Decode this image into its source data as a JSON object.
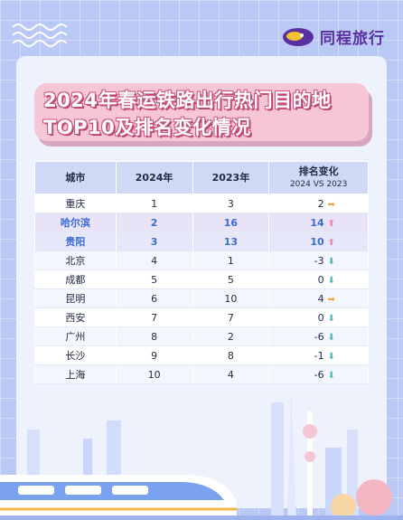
{
  "brand": {
    "name": "同程旅行"
  },
  "title": "2024年春运铁路出行热门目的地TOP10及排名变化情况",
  "table": {
    "headers": {
      "city": "城市",
      "y2024": "2024年",
      "y2023": "2023年",
      "change": "排名变化",
      "change_sub": "2024 VS 2023"
    },
    "rows": [
      {
        "city": "重庆",
        "y2024": "1",
        "y2023": "3",
        "change": "2",
        "dir": "right"
      },
      {
        "city": "哈尔滨",
        "y2024": "2",
        "y2023": "16",
        "change": "14",
        "dir": "up"
      },
      {
        "city": "贵阳",
        "y2024": "3",
        "y2023": "13",
        "change": "10",
        "dir": "up"
      },
      {
        "city": "北京",
        "y2024": "4",
        "y2023": "1",
        "change": "-3",
        "dir": "down"
      },
      {
        "city": "成都",
        "y2024": "5",
        "y2023": "5",
        "change": "0",
        "dir": "down"
      },
      {
        "city": "昆明",
        "y2024": "6",
        "y2023": "10",
        "change": "4",
        "dir": "right"
      },
      {
        "city": "西安",
        "y2024": "7",
        "y2023": "7",
        "change": "0",
        "dir": "down"
      },
      {
        "city": "广州",
        "y2024": "8",
        "y2023": "2",
        "change": "-6",
        "dir": "down"
      },
      {
        "city": "长沙",
        "y2024": "9",
        "y2023": "8",
        "change": "-1",
        "dir": "down"
      },
      {
        "city": "上海",
        "y2024": "10",
        "y2023": "4",
        "change": "-6",
        "dir": "down"
      }
    ]
  },
  "icons": {
    "logo": "tongcheng-logo-icon",
    "up": "arrow-up-icon",
    "right": "arrow-right-icon",
    "down": "arrow-down-icon"
  },
  "colors": {
    "background": "#b9c8f4",
    "title_box": "#f6c6d6",
    "brand": "#5a2fa0",
    "highlight_text": "#3a6cd1",
    "arrow_up": "#e88ab0",
    "arrow_right": "#f0a64a",
    "arrow_down": "#4fb9b4"
  }
}
